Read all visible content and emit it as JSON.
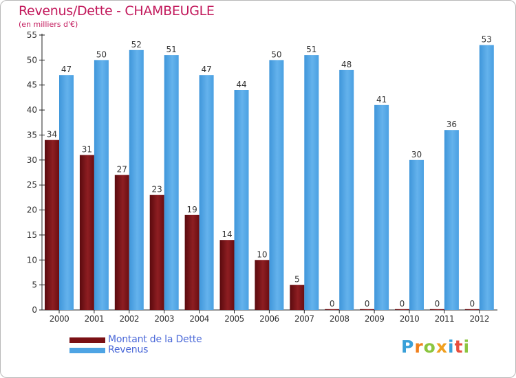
{
  "header": {
    "title": "Revenus/Dette - CHAMBEUGLE",
    "subtitle": "(en milliers d'€)"
  },
  "legend": {
    "items": [
      {
        "label": "Montant de la Dette",
        "color": "#7a1014"
      },
      {
        "label": "Revenus",
        "color": "#4ea4e4"
      }
    ]
  },
  "logo": {
    "letters": [
      "P",
      "r",
      "o",
      "x",
      "i",
      "t",
      "i"
    ],
    "colors": [
      "#39a0d8",
      "#f07f1c",
      "#8bc53f",
      "#f0a020",
      "#39a0d8",
      "#e84d3c",
      "#8bc53f"
    ]
  },
  "chart_data": {
    "type": "bar",
    "title": "Revenus/Dette - CHAMBEUGLE",
    "subtitle": "(en milliers d'€)",
    "xlabel": "",
    "ylabel": "",
    "ylim": [
      0,
      55
    ],
    "ytick_step": 5,
    "grid": false,
    "categories": [
      "2000",
      "2001",
      "2002",
      "2003",
      "2004",
      "2005",
      "2006",
      "2007",
      "2008",
      "2009",
      "2010",
      "2011",
      "2012"
    ],
    "series": [
      {
        "name": "Montant de la Dette",
        "color": "#7a1014",
        "values": [
          34,
          31,
          27,
          23,
          19,
          14,
          10,
          5,
          0,
          0,
          0,
          0,
          0
        ]
      },
      {
        "name": "Revenus",
        "color": "#4ea4e4",
        "values": [
          47,
          50,
          52,
          51,
          47,
          44,
          50,
          51,
          48,
          41,
          30,
          36,
          53
        ]
      }
    ]
  }
}
